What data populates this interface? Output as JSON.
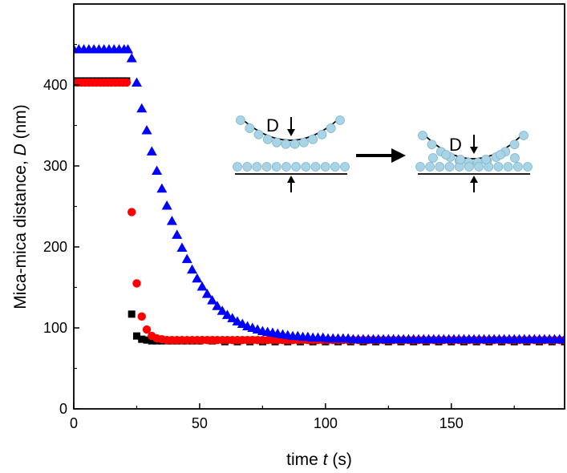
{
  "chart_data": {
    "type": "scatter",
    "xlabel_main": "time ",
    "xlabel_var": "t",
    "xlabel_unit": " (s)",
    "ylabel_main": "Mica-mica distance, ",
    "ylabel_var": "D",
    "ylabel_unit": " (nm)",
    "xlim": [
      0,
      195
    ],
    "ylim": [
      0,
      500
    ],
    "x_ticks": [
      "0",
      "50",
      "100",
      "150"
    ],
    "y_ticks": [
      "0",
      "100",
      "200",
      "300",
      "400"
    ],
    "legend": "none",
    "grid": false,
    "series": [
      {
        "marker": "square",
        "color": "#000000",
        "points": [
          [
            0,
            405
          ],
          [
            1.5,
            405
          ],
          [
            3,
            405
          ],
          [
            4.5,
            405
          ],
          [
            6,
            405
          ],
          [
            7.5,
            405
          ],
          [
            9,
            405
          ],
          [
            10.5,
            405
          ],
          [
            12,
            405
          ],
          [
            13.5,
            405
          ],
          [
            15,
            405
          ],
          [
            16.5,
            405
          ],
          [
            18,
            405
          ],
          [
            19.5,
            405
          ],
          [
            21,
            405
          ],
          [
            23,
            117
          ],
          [
            25,
            90
          ],
          [
            27,
            86
          ],
          [
            29,
            85
          ],
          [
            31,
            84
          ],
          [
            33,
            84
          ],
          [
            35,
            84
          ],
          [
            38,
            84
          ],
          [
            41,
            84
          ],
          [
            44,
            84
          ],
          [
            47,
            84
          ],
          [
            50,
            84
          ],
          [
            55,
            84
          ],
          [
            60,
            83
          ],
          [
            65,
            83
          ],
          [
            70,
            83
          ],
          [
            75,
            83
          ],
          [
            80,
            83
          ],
          [
            85,
            83
          ],
          [
            90,
            83
          ],
          [
            95,
            83
          ],
          [
            100,
            83
          ],
          [
            105,
            83
          ],
          [
            110,
            83
          ],
          [
            115,
            83
          ],
          [
            120,
            83
          ],
          [
            125,
            83
          ],
          [
            130,
            83
          ],
          [
            135,
            83
          ],
          [
            140,
            83
          ],
          [
            145,
            83
          ],
          [
            150,
            83
          ],
          [
            155,
            83
          ],
          [
            160,
            83
          ],
          [
            165,
            83
          ],
          [
            170,
            83
          ],
          [
            175,
            83
          ],
          [
            180,
            83
          ],
          [
            185,
            83
          ],
          [
            190,
            83
          ],
          [
            195,
            83
          ]
        ]
      },
      {
        "marker": "circle",
        "color": "#ff0000",
        "points": [
          [
            0,
            403
          ],
          [
            1.5,
            403
          ],
          [
            3,
            403
          ],
          [
            4.5,
            403
          ],
          [
            6,
            403
          ],
          [
            7.5,
            403
          ],
          [
            9,
            403
          ],
          [
            10.5,
            403
          ],
          [
            12,
            403
          ],
          [
            13.5,
            403
          ],
          [
            15,
            403
          ],
          [
            16.5,
            403
          ],
          [
            18,
            403
          ],
          [
            19.5,
            403
          ],
          [
            21,
            403
          ],
          [
            23,
            243
          ],
          [
            25,
            155
          ],
          [
            27,
            114
          ],
          [
            29,
            98
          ],
          [
            31,
            90
          ],
          [
            33,
            87
          ],
          [
            35,
            86
          ],
          [
            37,
            85
          ],
          [
            39,
            85
          ],
          [
            41,
            85
          ],
          [
            43,
            85
          ],
          [
            45,
            85
          ],
          [
            47,
            85
          ],
          [
            49,
            85
          ],
          [
            51,
            85
          ],
          [
            53,
            85
          ],
          [
            55,
            85
          ],
          [
            57,
            85
          ],
          [
            59,
            85
          ],
          [
            61,
            85
          ],
          [
            63,
            85
          ],
          [
            65,
            85
          ],
          [
            67,
            85
          ],
          [
            69,
            85
          ],
          [
            71,
            85
          ],
          [
            73,
            85
          ],
          [
            75,
            85
          ],
          [
            77,
            85
          ],
          [
            79,
            85
          ],
          [
            81,
            85
          ],
          [
            83,
            85
          ],
          [
            85,
            85
          ],
          [
            87,
            85
          ],
          [
            89,
            85
          ],
          [
            91,
            85
          ],
          [
            93,
            85
          ],
          [
            95,
            85
          ],
          [
            97,
            85
          ],
          [
            99,
            85
          ],
          [
            101,
            85
          ],
          [
            103,
            85
          ],
          [
            105,
            85
          ],
          [
            107,
            85
          ],
          [
            109,
            85
          ],
          [
            111,
            85
          ],
          [
            113,
            85
          ],
          [
            115,
            85
          ],
          [
            117,
            85
          ],
          [
            119,
            85
          ],
          [
            121,
            85
          ],
          [
            123,
            85
          ],
          [
            125,
            85
          ],
          [
            127,
            85
          ],
          [
            129,
            85
          ],
          [
            131,
            85
          ],
          [
            133,
            85
          ],
          [
            135,
            85
          ],
          [
            137,
            85
          ],
          [
            139,
            85
          ],
          [
            141,
            85
          ],
          [
            143,
            85
          ],
          [
            145,
            85
          ],
          [
            147,
            85
          ],
          [
            149,
            85
          ],
          [
            151,
            85
          ],
          [
            153,
            85
          ],
          [
            155,
            85
          ],
          [
            157,
            85
          ],
          [
            159,
            85
          ],
          [
            161,
            85
          ],
          [
            163,
            85
          ],
          [
            165,
            85
          ],
          [
            167,
            85
          ],
          [
            169,
            85
          ],
          [
            171,
            85
          ],
          [
            173,
            85
          ],
          [
            175,
            85
          ],
          [
            177,
            85
          ],
          [
            179,
            85
          ],
          [
            181,
            85
          ],
          [
            183,
            85
          ],
          [
            185,
            85
          ],
          [
            187,
            85
          ],
          [
            189,
            85
          ],
          [
            191,
            85
          ],
          [
            193,
            85
          ],
          [
            195,
            85
          ]
        ]
      },
      {
        "marker": "triangle",
        "color": "#0000ff",
        "points": [
          [
            0,
            444
          ],
          [
            2,
            444
          ],
          [
            4,
            444
          ],
          [
            6,
            444
          ],
          [
            8,
            444
          ],
          [
            10,
            444
          ],
          [
            12,
            444
          ],
          [
            14,
            444
          ],
          [
            16,
            444
          ],
          [
            18,
            444
          ],
          [
            20,
            444
          ],
          [
            21.5,
            444
          ],
          [
            23,
            433
          ],
          [
            25,
            403
          ],
          [
            27,
            371
          ],
          [
            29,
            344
          ],
          [
            31,
            318
          ],
          [
            33,
            294
          ],
          [
            35,
            272
          ],
          [
            37,
            251
          ],
          [
            39,
            232
          ],
          [
            41,
            215
          ],
          [
            43,
            199
          ],
          [
            45,
            185
          ],
          [
            47,
            172
          ],
          [
            49,
            161
          ],
          [
            51,
            151
          ],
          [
            53,
            142
          ],
          [
            55,
            134
          ],
          [
            57,
            127
          ],
          [
            59,
            121
          ],
          [
            61,
            116
          ],
          [
            63,
            112
          ],
          [
            65,
            108
          ],
          [
            67,
            105
          ],
          [
            69,
            102
          ],
          [
            71,
            100
          ],
          [
            73,
            98
          ],
          [
            75,
            96
          ],
          [
            77,
            95
          ],
          [
            79,
            94
          ],
          [
            81,
            93
          ],
          [
            83,
            92
          ],
          [
            85,
            91
          ],
          [
            87,
            90
          ],
          [
            89,
            90
          ],
          [
            91,
            89
          ],
          [
            93,
            89
          ],
          [
            95,
            88
          ],
          [
            97,
            88
          ],
          [
            99,
            88
          ],
          [
            101,
            87
          ],
          [
            103,
            87
          ],
          [
            105,
            87
          ],
          [
            107,
            87
          ],
          [
            109,
            87
          ],
          [
            111,
            86
          ],
          [
            113,
            86
          ],
          [
            115,
            86
          ],
          [
            117,
            86
          ],
          [
            119,
            86
          ],
          [
            121,
            86
          ],
          [
            123,
            86
          ],
          [
            125,
            86
          ],
          [
            127,
            86
          ],
          [
            129,
            86
          ],
          [
            131,
            86
          ],
          [
            133,
            86
          ],
          [
            135,
            86
          ],
          [
            137,
            86
          ],
          [
            139,
            86
          ],
          [
            141,
            86
          ],
          [
            143,
            86
          ],
          [
            145,
            86
          ],
          [
            147,
            86
          ],
          [
            149,
            86
          ],
          [
            151,
            86
          ],
          [
            153,
            86
          ],
          [
            155,
            86
          ],
          [
            157,
            86
          ],
          [
            159,
            86
          ],
          [
            161,
            86
          ],
          [
            163,
            86
          ],
          [
            165,
            86
          ],
          [
            167,
            86
          ],
          [
            169,
            86
          ],
          [
            171,
            86
          ],
          [
            173,
            86
          ],
          [
            175,
            86
          ],
          [
            177,
            86
          ],
          [
            179,
            86
          ],
          [
            181,
            86
          ],
          [
            183,
            86
          ],
          [
            185,
            86
          ],
          [
            187,
            86
          ],
          [
            189,
            86
          ],
          [
            191,
            86
          ],
          [
            193,
            86
          ],
          [
            195,
            86
          ]
        ]
      }
    ],
    "inset": {
      "label_before": "D",
      "label_after": "D",
      "bead_color": "#a8d4e6"
    }
  }
}
